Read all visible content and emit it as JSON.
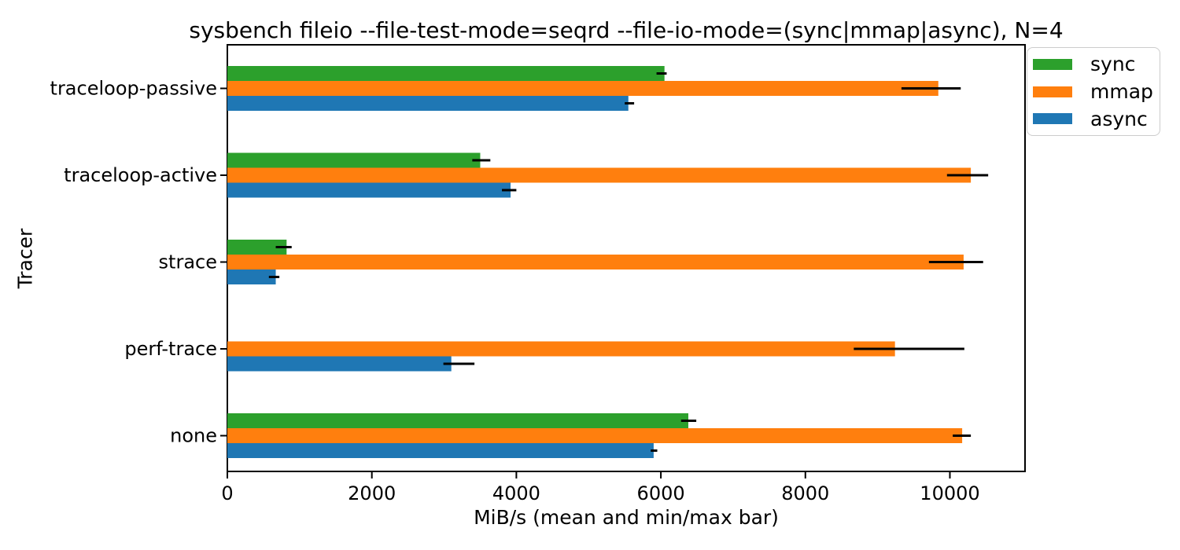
{
  "chart_data": {
    "type": "bar",
    "orientation": "horizontal",
    "title": "sysbench fileio --file-test-mode=seqrd --file-io-mode=(sync|mmap|async), N=4",
    "xlabel": "MiB/s (mean and min/max bar)",
    "ylabel": "Tracer",
    "xlim": [
      0,
      11040
    ],
    "xticks": [
      0,
      2000,
      4000,
      6000,
      8000,
      10000
    ],
    "categories_top_to_bottom": [
      "traceloop-passive",
      "traceloop-active",
      "strace",
      "perf-trace",
      "none"
    ],
    "series": [
      {
        "name": "sync",
        "color": "#2ca02c",
        "mean": [
          6050,
          3500,
          820,
          0,
          6380
        ],
        "min": [
          5940,
          3390,
          670,
          0,
          6280
        ],
        "max": [
          6080,
          3640,
          890,
          0,
          6490
        ]
      },
      {
        "name": "mmap",
        "color": "#ff7f0e",
        "mean": [
          9840,
          10290,
          10190,
          9240,
          10170
        ],
        "min": [
          9330,
          9960,
          9710,
          8670,
          10040
        ],
        "max": [
          10150,
          10530,
          10460,
          10200,
          10290
        ]
      },
      {
        "name": "async",
        "color": "#1f77b4",
        "mean": [
          5550,
          3920,
          670,
          3100,
          5900
        ],
        "min": [
          5500,
          3800,
          575,
          2990,
          5860
        ],
        "max": [
          5630,
          4000,
          720,
          3420,
          5950
        ]
      }
    ],
    "error_bar_color": "#000000",
    "axis_color": "#000000",
    "legend": {
      "position": "upper-right-outside",
      "entries": [
        "sync",
        "mmap",
        "async"
      ]
    },
    "grid": false
  }
}
